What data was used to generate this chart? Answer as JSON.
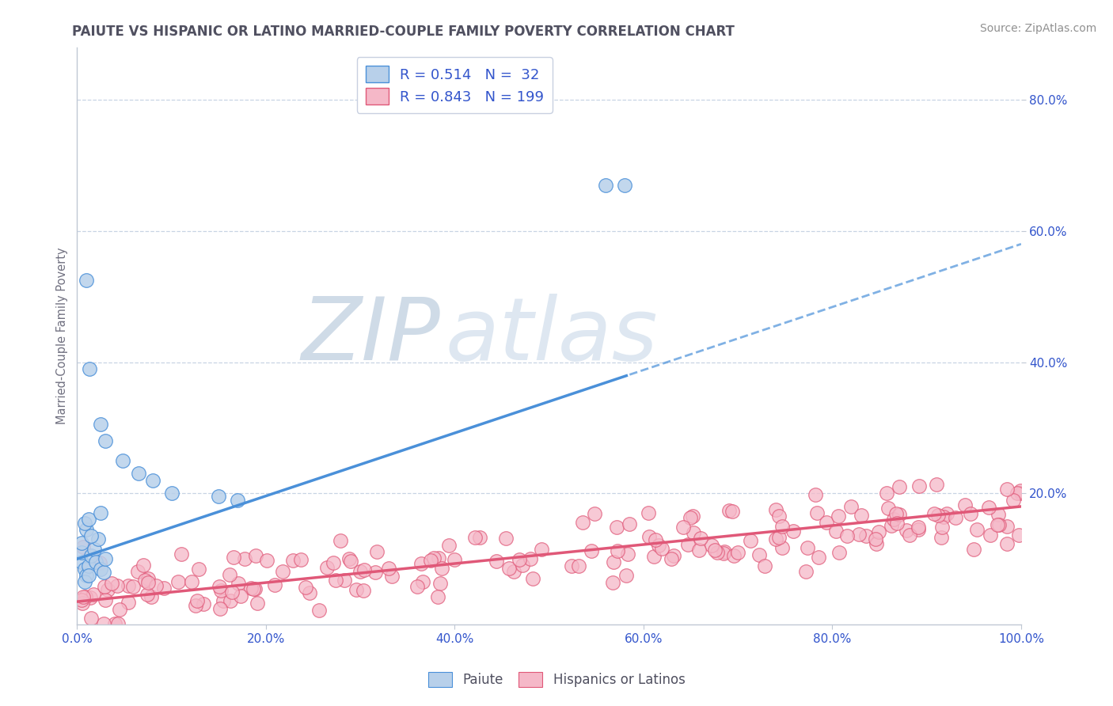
{
  "title": "PAIUTE VS HISPANIC OR LATINO MARRIED-COUPLE FAMILY POVERTY CORRELATION CHART",
  "source": "Source: ZipAtlas.com",
  "ylabel": "Married-Couple Family Poverty",
  "xlim": [
    0,
    1
  ],
  "ylim": [
    0,
    0.88
  ],
  "xticks": [
    0,
    0.2,
    0.4,
    0.6,
    0.8,
    1.0
  ],
  "yticks": [
    0,
    0.2,
    0.4,
    0.6,
    0.8
  ],
  "xticklabels": [
    "0.0%",
    "20.0%",
    "40.0%",
    "60.0%",
    "80.0%",
    "100.0%"
  ],
  "yticklabels": [
    "",
    "20.0%",
    "40.0%",
    "60.0%",
    "80.0%"
  ],
  "paiute_R": 0.514,
  "paiute_N": 32,
  "hispanic_R": 0.843,
  "hispanic_N": 199,
  "paiute_color": "#b8d0ea",
  "hispanic_color": "#f5b8c8",
  "paiute_line_color": "#4a90d9",
  "hispanic_line_color": "#e05878",
  "legend_text_color": "#3355cc",
  "watermark_zip_color": "#b0c4d8",
  "watermark_atlas_color": "#c8d8e8",
  "bg_color": "#ffffff",
  "grid_color": "#c8d4e4",
  "title_color": "#505060",
  "source_color": "#909090",
  "tick_color": "#707080",
  "spine_color": "#c0c8d4",
  "legend_border_color": "#c8d0e0",
  "paiute_intercept": 0.1,
  "paiute_slope": 0.48,
  "hispanic_intercept": 0.035,
  "hispanic_slope": 0.145
}
